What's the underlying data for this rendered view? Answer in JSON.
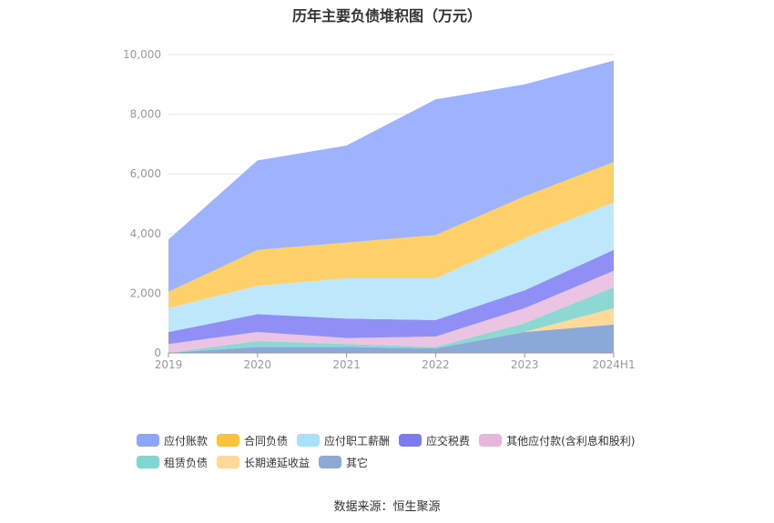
{
  "chart_data": {
    "type": "area",
    "stacked": true,
    "title": "历年主要负债堆积图（万元）",
    "categories": [
      "2019",
      "2020",
      "2021",
      "2022",
      "2023",
      "2024H1"
    ],
    "ylim": [
      0,
      10000
    ],
    "yticks": [
      "0",
      "2,000",
      "4,000",
      "6,000",
      "8,000",
      "10,000"
    ],
    "yticks_values": [
      0,
      2000,
      4000,
      6000,
      8000,
      10000
    ],
    "grid": true,
    "series": [
      {
        "name": "其它",
        "color": "#8aa8d8",
        "values": [
          0,
          200,
          200,
          150,
          700,
          950
        ]
      },
      {
        "name": "长期递延收益",
        "color": "#ffd99a",
        "values": [
          0,
          0,
          0,
          0,
          0,
          550
        ]
      },
      {
        "name": "租赁负债",
        "color": "#8ed8d4",
        "values": [
          0,
          200,
          100,
          50,
          300,
          700
        ]
      },
      {
        "name": "其他应付款(含利息和股利)",
        "color": "#eac4e2",
        "values": [
          300,
          300,
          200,
          350,
          500,
          550
        ]
      },
      {
        "name": "应交税费",
        "color": "#8f8ff5",
        "values": [
          400,
          600,
          650,
          550,
          600,
          700
        ]
      },
      {
        "name": "应付职工薪酬",
        "color": "#bde8fb",
        "values": [
          800,
          950,
          1350,
          1400,
          1750,
          1600
        ]
      },
      {
        "name": "合同负债",
        "color": "#fdd06a",
        "values": [
          550,
          1200,
          1200,
          1450,
          1400,
          1350
        ]
      },
      {
        "name": "应付账款",
        "color": "#9eb3fc",
        "values": [
          1750,
          3000,
          3250,
          4550,
          3750,
          3400
        ]
      }
    ],
    "legend": [
      [
        "应付账款",
        "合同负债",
        "应付职工薪酬",
        "应交税费",
        "其他应付款(含利息和股利)"
      ],
      [
        "租赁负债",
        "长期递延收益",
        "其它"
      ]
    ],
    "legend_colors": {
      "应付账款": "#8ea6f8",
      "合同负债": "#fbc33c",
      "应付职工薪酬": "#a9e0fa",
      "应交税费": "#7b7bf0",
      "其他应付款(含利息和股利)": "#e6b6dc",
      "租赁负债": "#7fd6d2",
      "长期递延收益": "#ffd99a",
      "其它": "#8fa9d6"
    }
  },
  "source": "数据来源：恒生聚源"
}
